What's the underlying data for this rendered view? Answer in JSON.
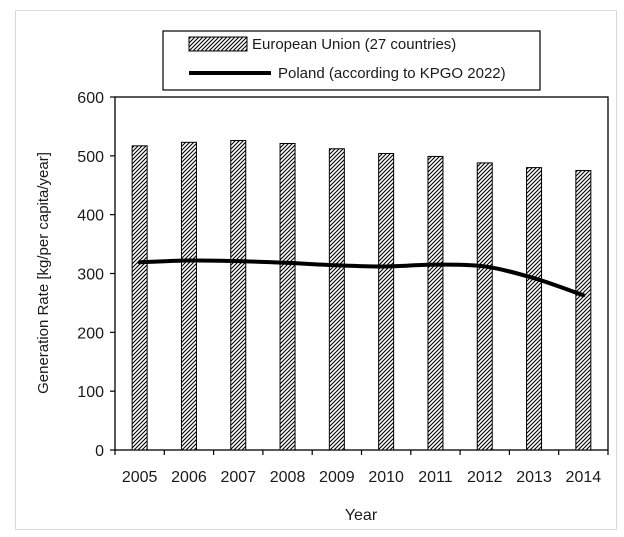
{
  "chart_data": {
    "type": "bar",
    "xlabel": "Year",
    "ylabel": "Generation Rate [kg/per capita/year]",
    "ylim": [
      0,
      600
    ],
    "yticks": [
      0,
      100,
      200,
      300,
      400,
      500,
      600
    ],
    "grid": false,
    "legend_position": "top",
    "categories": [
      "2005",
      "2006",
      "2007",
      "2008",
      "2009",
      "2010",
      "2011",
      "2012",
      "2013",
      "2014"
    ],
    "series": [
      {
        "name": "European Union (27 countries)",
        "type": "bar",
        "pattern": "diagonal-hatch",
        "values": [
          517,
          523,
          526,
          521,
          512,
          504,
          499,
          488,
          480,
          475
        ]
      },
      {
        "name": "Poland (according to KPGO 2022)",
        "type": "line",
        "color": "#000000",
        "values": [
          319,
          322,
          321,
          318,
          314,
          312,
          315,
          312,
          292,
          263
        ]
      }
    ]
  }
}
